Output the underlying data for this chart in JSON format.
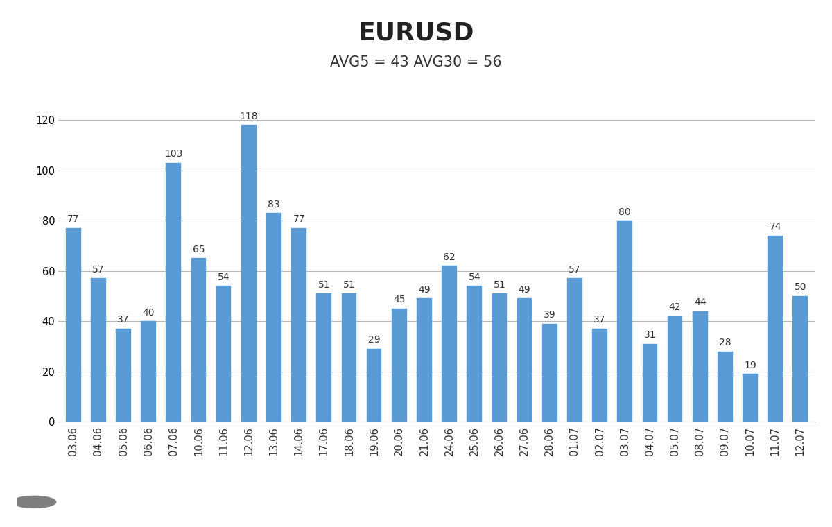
{
  "title": "EURUSD",
  "subtitle": "AVG5 = 43 AVG30 = 56",
  "categories": [
    "03.06",
    "04.06",
    "05.06",
    "06.06",
    "07.06",
    "10.06",
    "11.06",
    "12.06",
    "13.06",
    "14.06",
    "17.06",
    "18.06",
    "19.06",
    "20.06",
    "21.06",
    "24.06",
    "25.06",
    "26.06",
    "27.06",
    "28.06",
    "01.07",
    "02.07",
    "03.07",
    "04.07",
    "05.07",
    "08.07",
    "09.07",
    "10.07",
    "11.07",
    "12.07"
  ],
  "values": [
    77,
    57,
    37,
    40,
    103,
    65,
    54,
    118,
    83,
    77,
    51,
    51,
    29,
    45,
    49,
    62,
    54,
    51,
    49,
    39,
    57,
    37,
    80,
    31,
    42,
    44,
    28,
    19,
    74,
    50
  ],
  "bar_color": "#5b9bd5",
  "bar_edge_color": "#5b9bd5",
  "background_color": "#ffffff",
  "grid_color": "#b8b8b8",
  "title_fontsize": 26,
  "subtitle_fontsize": 15,
  "tick_fontsize": 10.5,
  "value_fontsize": 10,
  "ylim": [
    0,
    130
  ],
  "yticks": [
    0,
    20,
    40,
    60,
    80,
    100,
    120
  ],
  "logo_bg_color": "#7f7f7f",
  "logo_text_color": "#ffffff"
}
